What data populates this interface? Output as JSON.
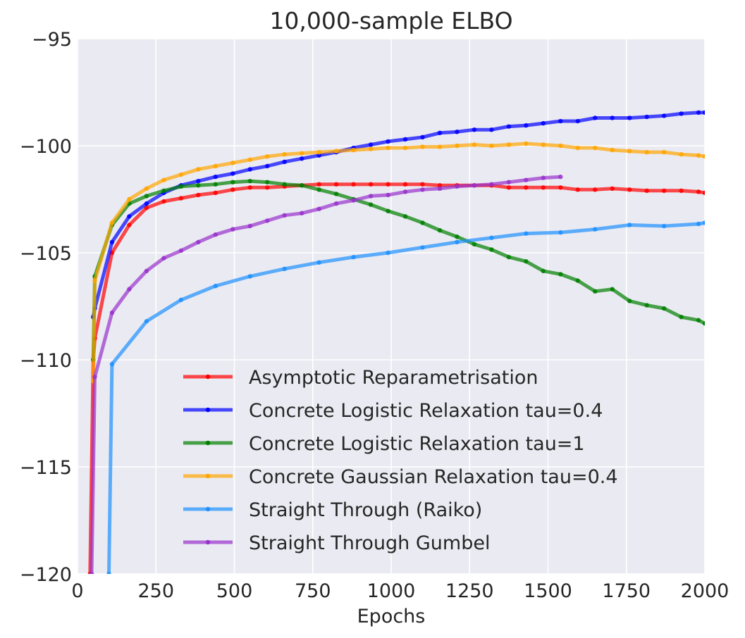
{
  "chart_data": {
    "type": "line",
    "title": "10,000-sample ELBO",
    "xlabel": "Epochs",
    "ylabel": "",
    "xlim": [
      0,
      2000
    ],
    "ylim": [
      -120,
      -95
    ],
    "xticks": [
      0,
      250,
      500,
      750,
      1000,
      1250,
      1500,
      1750,
      2000
    ],
    "xtick_labels": [
      "0",
      "250",
      "500",
      "750",
      "1000",
      "1250",
      "1500",
      "1750",
      "2000"
    ],
    "yticks": [
      -120,
      -115,
      -110,
      -105,
      -100,
      -95
    ],
    "ytick_labels": [
      "−120",
      "−115",
      "−110",
      "−105",
      "−100",
      "−95"
    ],
    "grid": true,
    "legend_position": "lower-right",
    "series": [
      {
        "name": "Asymptotic Reparametrisation",
        "color": "#ff0000",
        "x": [
          40,
          50,
          55,
          110,
          165,
          220,
          275,
          330,
          385,
          440,
          495,
          550,
          605,
          660,
          715,
          770,
          825,
          880,
          935,
          990,
          1045,
          1100,
          1155,
          1210,
          1265,
          1320,
          1375,
          1430,
          1485,
          1540,
          1595,
          1650,
          1705,
          1760,
          1815,
          1870,
          1925,
          1980,
          2000
        ],
        "y": [
          -120,
          -110,
          -109,
          -105,
          -103.7,
          -102.9,
          -102.6,
          -102.45,
          -102.3,
          -102.2,
          -102.05,
          -101.95,
          -101.95,
          -101.9,
          -101.85,
          -101.8,
          -101.8,
          -101.8,
          -101.8,
          -101.8,
          -101.8,
          -101.8,
          -101.85,
          -101.85,
          -101.85,
          -101.85,
          -101.95,
          -101.95,
          -101.95,
          -101.95,
          -102.05,
          -102.05,
          -102.0,
          -102.05,
          -102.1,
          -102.1,
          -102.1,
          -102.15,
          -102.2
        ]
      },
      {
        "name": "Concrete Logistic Relaxation tau=0.4",
        "color": "#0000ff",
        "x": [
          50,
          55,
          110,
          165,
          220,
          275,
          330,
          385,
          440,
          495,
          550,
          605,
          660,
          715,
          770,
          825,
          880,
          935,
          990,
          1045,
          1100,
          1155,
          1210,
          1265,
          1320,
          1375,
          1430,
          1485,
          1540,
          1595,
          1650,
          1705,
          1760,
          1815,
          1870,
          1925,
          1980,
          2000
        ],
        "y": [
          -108,
          -107.6,
          -104.5,
          -103.3,
          -102.7,
          -102.2,
          -101.85,
          -101.65,
          -101.45,
          -101.3,
          -101.1,
          -100.95,
          -100.75,
          -100.6,
          -100.45,
          -100.3,
          -100.1,
          -99.95,
          -99.8,
          -99.7,
          -99.6,
          -99.4,
          -99.35,
          -99.25,
          -99.25,
          -99.1,
          -99.05,
          -98.95,
          -98.85,
          -98.85,
          -98.7,
          -98.7,
          -98.7,
          -98.65,
          -98.6,
          -98.5,
          -98.45,
          -98.45
        ]
      },
      {
        "name": "Concrete Logistic Relaxation tau=1",
        "color": "#008000",
        "x": [
          50,
          55,
          110,
          165,
          220,
          275,
          330,
          385,
          440,
          495,
          550,
          605,
          660,
          715,
          770,
          825,
          880,
          935,
          990,
          1045,
          1100,
          1155,
          1210,
          1265,
          1320,
          1375,
          1430,
          1485,
          1540,
          1595,
          1650,
          1705,
          1760,
          1815,
          1870,
          1925,
          1980,
          2000
        ],
        "y": [
          -110,
          -106.1,
          -103.7,
          -102.7,
          -102.35,
          -102.1,
          -101.9,
          -101.85,
          -101.8,
          -101.7,
          -101.65,
          -101.7,
          -101.8,
          -101.85,
          -102.05,
          -102.25,
          -102.5,
          -102.75,
          -103.05,
          -103.3,
          -103.6,
          -103.95,
          -104.25,
          -104.6,
          -104.85,
          -105.2,
          -105.4,
          -105.85,
          -106.0,
          -106.3,
          -106.8,
          -106.7,
          -107.25,
          -107.45,
          -107.6,
          -108.0,
          -108.15,
          -108.3
        ]
      },
      {
        "name": "Concrete Gaussian Relaxation tau=0.4",
        "color": "#ffa500",
        "x": [
          50,
          55,
          110,
          165,
          220,
          275,
          330,
          385,
          440,
          495,
          550,
          605,
          660,
          715,
          770,
          825,
          880,
          935,
          990,
          1045,
          1100,
          1155,
          1210,
          1265,
          1320,
          1375,
          1430,
          1485,
          1540,
          1595,
          1650,
          1705,
          1760,
          1815,
          1870,
          1925,
          1980,
          2000
        ],
        "y": [
          -111,
          -106.3,
          -103.6,
          -102.5,
          -102.0,
          -101.6,
          -101.35,
          -101.1,
          -100.95,
          -100.8,
          -100.65,
          -100.5,
          -100.4,
          -100.35,
          -100.3,
          -100.25,
          -100.2,
          -100.15,
          -100.1,
          -100.1,
          -100.05,
          -100.05,
          -100.0,
          -99.95,
          -100.0,
          -99.95,
          -99.9,
          -99.95,
          -100.0,
          -100.1,
          -100.1,
          -100.2,
          -100.25,
          -100.3,
          -100.3,
          -100.4,
          -100.45,
          -100.5
        ]
      },
      {
        "name": "Straight Through (Raiko)",
        "color": "#1e90ff",
        "x": [
          100,
          110,
          220,
          330,
          440,
          550,
          660,
          770,
          880,
          990,
          1100,
          1210,
          1320,
          1430,
          1540,
          1650,
          1760,
          1870,
          1980,
          2000
        ],
        "y": [
          -120,
          -110.2,
          -108.2,
          -107.2,
          -106.55,
          -106.1,
          -105.75,
          -105.45,
          -105.2,
          -105.0,
          -104.75,
          -104.5,
          -104.3,
          -104.1,
          -104.05,
          -103.9,
          -103.7,
          -103.75,
          -103.65,
          -103.6
        ]
      },
      {
        "name": "Straight Through Gumbel",
        "color": "#9932cc",
        "x": [
          45,
          55,
          110,
          165,
          220,
          275,
          330,
          385,
          440,
          495,
          550,
          605,
          660,
          715,
          770,
          825,
          880,
          935,
          990,
          1045,
          1100,
          1155,
          1210,
          1265,
          1320,
          1375,
          1430,
          1485,
          1540
        ],
        "y": [
          -120,
          -110.8,
          -107.8,
          -106.7,
          -105.85,
          -105.25,
          -104.9,
          -104.5,
          -104.15,
          -103.9,
          -103.75,
          -103.5,
          -103.25,
          -103.15,
          -102.95,
          -102.7,
          -102.55,
          -102.35,
          -102.3,
          -102.15,
          -102.05,
          -102.0,
          -101.9,
          -101.85,
          -101.8,
          -101.7,
          -101.6,
          -101.5,
          -101.45
        ]
      }
    ]
  }
}
